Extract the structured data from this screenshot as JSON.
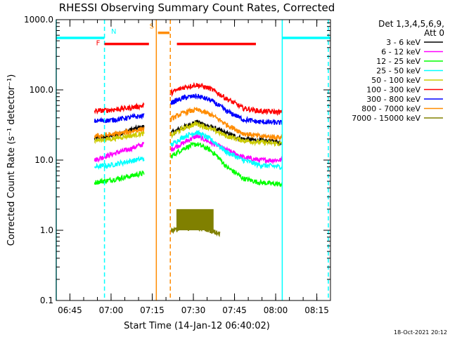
{
  "chart_data": {
    "type": "line",
    "title": "RHESSI Observing Summary Count Rates, Corrected",
    "xlabel": "Start Time (14-Jan-12 06:40:02)",
    "ylabel": "Corrected Count Rate (s⁻¹ detector⁻¹)",
    "yscale": "log",
    "ylim": [
      0.1,
      1000
    ],
    "y_ticks": [
      {
        "value": 0.1,
        "label": "0.1"
      },
      {
        "value": 1,
        "label": "1.0"
      },
      {
        "value": 10,
        "label": "10.0"
      },
      {
        "value": 100,
        "label": "100.0"
      },
      {
        "value": 1000,
        "label": "1000.0"
      }
    ],
    "x_ticks": [
      {
        "value": 6.75,
        "label": "06:45"
      },
      {
        "value": 7.0,
        "label": "07:00"
      },
      {
        "value": 7.25,
        "label": "07:15"
      },
      {
        "value": 7.5,
        "label": "07:30"
      },
      {
        "value": 7.75,
        "label": "07:45"
      },
      {
        "value": 8.0,
        "label": "08:00"
      },
      {
        "value": 8.25,
        "label": "08:15"
      }
    ],
    "xlim_hours": [
      6.667,
      8.333
    ],
    "legend": {
      "header": [
        "Det 1,3,4,5,6,9,",
        "Att 0"
      ],
      "placement": "right",
      "entries": [
        {
          "label": "3 - 6 keV",
          "color": "#000000"
        },
        {
          "label": "6 - 12 keV",
          "color": "#ff00ff"
        },
        {
          "label": "12 - 25 keV",
          "color": "#00ff00"
        },
        {
          "label": "25 - 50 keV",
          "color": "#00ffff"
        },
        {
          "label": "50 - 100 keV",
          "color": "#cccc00"
        },
        {
          "label": "100 - 300 keV",
          "color": "#ff0000"
        },
        {
          "label": "300 - 800 keV",
          "color": "#0000ff"
        },
        {
          "label": "800 - 7000 keV",
          "color": "#ff8c00"
        },
        {
          "label": "7000 - 15000 keV",
          "color": "#808000"
        }
      ]
    },
    "series": [
      {
        "name": "3 - 6 keV",
        "color": "#000000",
        "segments": [
          [
            [
              6.9,
              20
            ],
            [
              7.0,
              22
            ],
            [
              7.1,
              26
            ],
            [
              7.2,
              30
            ]
          ],
          [
            [
              7.36,
              24
            ],
            [
              7.45,
              30
            ],
            [
              7.52,
              35
            ],
            [
              7.6,
              30
            ],
            [
              7.7,
              24
            ],
            [
              7.8,
              20
            ],
            [
              7.9,
              19
            ],
            [
              8.04,
              18
            ]
          ]
        ]
      },
      {
        "name": "6 - 12 keV",
        "color": "#ff00ff",
        "segments": [
          [
            [
              6.9,
              10
            ],
            [
              7.0,
              12
            ],
            [
              7.1,
              14
            ],
            [
              7.2,
              17
            ]
          ],
          [
            [
              7.36,
              14
            ],
            [
              7.45,
              18
            ],
            [
              7.52,
              22
            ],
            [
              7.6,
              18
            ],
            [
              7.7,
              14
            ],
            [
              7.8,
              11
            ],
            [
              7.9,
              10
            ],
            [
              8.04,
              10
            ]
          ]
        ]
      },
      {
        "name": "12 - 25 keV",
        "color": "#00ff00",
        "segments": [
          [
            [
              6.9,
              4.8
            ],
            [
              7.0,
              5.2
            ],
            [
              7.1,
              5.8
            ],
            [
              7.2,
              6.5
            ]
          ],
          [
            [
              7.36,
              11
            ],
            [
              7.45,
              15
            ],
            [
              7.52,
              17
            ],
            [
              7.6,
              14
            ],
            [
              7.7,
              8
            ],
            [
              7.8,
              5.5
            ],
            [
              7.9,
              4.8
            ],
            [
              8.04,
              4.5
            ]
          ]
        ]
      },
      {
        "name": "25 - 50 keV",
        "color": "#00ffff",
        "segments": [
          [
            [
              6.9,
              8
            ],
            [
              7.0,
              8.5
            ],
            [
              7.1,
              9.5
            ],
            [
              7.2,
              10.5
            ]
          ],
          [
            [
              7.36,
              16
            ],
            [
              7.45,
              22
            ],
            [
              7.52,
              25
            ],
            [
              7.6,
              20
            ],
            [
              7.7,
              13
            ],
            [
              7.8,
              10
            ],
            [
              7.9,
              8.5
            ],
            [
              8.04,
              8
            ]
          ]
        ]
      },
      {
        "name": "50 - 100 keV",
        "color": "#cccc00",
        "segments": [
          [
            [
              6.9,
              19
            ],
            [
              7.0,
              20
            ],
            [
              7.1,
              22
            ],
            [
              7.2,
              24
            ]
          ],
          [
            [
              7.36,
              22
            ],
            [
              7.45,
              29
            ],
            [
              7.52,
              33
            ],
            [
              7.6,
              28
            ],
            [
              7.7,
              22
            ],
            [
              7.8,
              19
            ],
            [
              7.9,
              18
            ],
            [
              8.04,
              17
            ]
          ]
        ]
      },
      {
        "name": "100 - 300 keV",
        "color": "#ff0000",
        "segments": [
          [
            [
              6.9,
              50
            ],
            [
              7.0,
              52
            ],
            [
              7.1,
              55
            ],
            [
              7.2,
              60
            ]
          ],
          [
            [
              7.36,
              90
            ],
            [
              7.45,
              110
            ],
            [
              7.52,
              118
            ],
            [
              7.6,
              105
            ],
            [
              7.7,
              75
            ],
            [
              7.8,
              55
            ],
            [
              7.9,
              50
            ],
            [
              8.04,
              48
            ]
          ]
        ]
      },
      {
        "name": "300 - 800 keV",
        "color": "#0000ff",
        "segments": [
          [
            [
              6.9,
              36
            ],
            [
              7.0,
              37
            ],
            [
              7.1,
              40
            ],
            [
              7.2,
              43
            ]
          ],
          [
            [
              7.36,
              65
            ],
            [
              7.45,
              78
            ],
            [
              7.52,
              82
            ],
            [
              7.6,
              72
            ],
            [
              7.7,
              50
            ],
            [
              7.8,
              38
            ],
            [
              7.9,
              35
            ],
            [
              8.04,
              34
            ]
          ]
        ]
      },
      {
        "name": "800 - 7000 keV",
        "color": "#ff8c00",
        "segments": [
          [
            [
              6.9,
              22
            ],
            [
              7.0,
              23
            ],
            [
              7.1,
              25
            ],
            [
              7.2,
              28
            ]
          ],
          [
            [
              7.36,
              38
            ],
            [
              7.45,
              48
            ],
            [
              7.52,
              52
            ],
            [
              7.6,
              45
            ],
            [
              7.7,
              32
            ],
            [
              7.8,
              24
            ],
            [
              7.9,
              22
            ],
            [
              8.04,
              21
            ]
          ]
        ]
      },
      {
        "name": "7000 - 15000 keV",
        "color": "#808000",
        "segments": [
          [
            [
              7.36,
              1.0
            ],
            [
              7.45,
              1.05
            ],
            [
              7.52,
              1.1
            ],
            [
              7.6,
              1.0
            ],
            [
              7.66,
              0.9
            ]
          ]
        ]
      }
    ],
    "olive_burst": {
      "start": 7.4,
      "end": 7.62,
      "top": 2.0,
      "base": 1.0,
      "color": "#808000"
    },
    "annotations": [
      {
        "type": "flag_bar",
        "label": "N",
        "color": "#00ffff",
        "start": 6.667,
        "end": 6.96,
        "value": 550
      },
      {
        "type": "flag_bar",
        "label": "",
        "color": "#00ffff",
        "start": 8.04,
        "end": 8.333,
        "value": 550
      },
      {
        "type": "flag_bar",
        "label": "F",
        "color": "#ff0000",
        "start": 6.96,
        "end": 7.23,
        "value": 450
      },
      {
        "type": "flag_bar",
        "label": "",
        "color": "#ff0000",
        "start": 7.4,
        "end": 7.88,
        "value": 450
      },
      {
        "type": "flag_bar",
        "label": "S",
        "color": "#ff8c00",
        "start": 7.285,
        "end": 7.355,
        "value": 650
      }
    ],
    "vlines": [
      {
        "x": 6.667,
        "color": "#00ffff",
        "style": "solid"
      },
      {
        "x": 6.96,
        "color": "#00ffff",
        "style": "dashed"
      },
      {
        "x": 7.275,
        "color": "#ff8c00",
        "style": "solid"
      },
      {
        "x": 7.36,
        "color": "#ff8c00",
        "style": "dashed"
      },
      {
        "x": 8.04,
        "color": "#00ffff",
        "style": "solid"
      },
      {
        "x": 8.32,
        "color": "#00ffff",
        "style": "dashed"
      }
    ],
    "footer_timestamp": "18-Oct-2021 20:12"
  }
}
